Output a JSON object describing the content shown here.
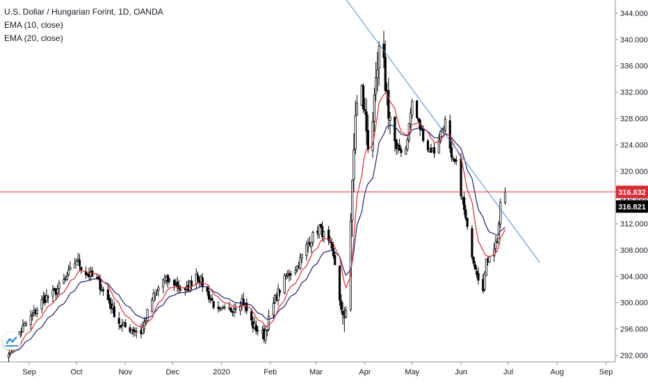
{
  "legend": {
    "title": "U.S. Dollar / Hungarian Forint, 1D, OANDA",
    "ema1": "EMA (10, close)",
    "ema2": "EMA (20, close)"
  },
  "colors": {
    "up": "#ffffff",
    "down": "#000000",
    "wick": "#000000",
    "ema10": "#e0272e",
    "ema20": "#1d1d6e",
    "trendline": "#3a8fe0",
    "hline": "#e0272e",
    "last_price_bg": "#000000"
  },
  "chart_data": {
    "type": "candlestick",
    "y_ticks": [
      "344.000",
      "340.000",
      "336.000",
      "332.000",
      "328.000",
      "324.000",
      "320.000",
      "316.000",
      "312.000",
      "308.000",
      "304.000",
      "300.000",
      "296.000",
      "292.000"
    ],
    "x_ticks": [
      "Sep",
      "Oct",
      "Nov",
      "Dec",
      "2020",
      "Feb",
      "Mar",
      "Apr",
      "May",
      "Jun",
      "Jul",
      "Aug",
      "Sep"
    ],
    "ylim": [
      291,
      346
    ],
    "hline_price": 316.832,
    "hline_label": "316.832",
    "last_price": 316.821,
    "last_price_label": "316.821",
    "trendline": {
      "from": [
        "2020-03-20",
        346.1
      ],
      "to": [
        "2020-07-21",
        306.1
      ]
    },
    "anchors": [
      [
        "2019-08-19",
        292.8
      ],
      [
        "2019-08-26",
        295.5
      ],
      [
        "2019-09-03",
        298.0
      ],
      [
        "2019-09-10",
        300.5
      ],
      [
        "2019-09-17",
        301.5
      ],
      [
        "2019-09-24",
        303.5
      ],
      [
        "2019-10-01",
        306.5
      ],
      [
        "2019-10-07",
        304.5
      ],
      [
        "2019-10-14",
        303.5
      ],
      [
        "2019-10-22",
        300.0
      ],
      [
        "2019-10-29",
        296.5
      ],
      [
        "2019-11-05",
        296.0
      ],
      [
        "2019-11-11",
        295.5
      ],
      [
        "2019-11-18",
        300.5
      ],
      [
        "2019-11-25",
        303.5
      ],
      [
        "2019-12-02",
        303.0
      ],
      [
        "2019-12-09",
        301.5
      ],
      [
        "2019-12-16",
        304.5
      ],
      [
        "2019-12-23",
        301.5
      ],
      [
        "2019-12-30",
        298.5
      ],
      [
        "2020-01-07",
        299.0
      ],
      [
        "2020-01-14",
        300.5
      ],
      [
        "2020-01-21",
        296.5
      ],
      [
        "2020-01-28",
        295.0
      ],
      [
        "2020-02-04",
        300.5
      ],
      [
        "2020-02-11",
        304.0
      ],
      [
        "2020-02-18",
        305.5
      ],
      [
        "2020-02-25",
        309.0
      ],
      [
        "2020-03-03",
        311.5
      ],
      [
        "2020-03-10",
        308.5
      ],
      [
        "2020-03-14",
        305.0
      ],
      [
        "2020-03-18",
        296.5
      ],
      [
        "2020-03-20",
        300.0
      ],
      [
        "2020-03-24",
        317.0
      ],
      [
        "2020-03-26",
        329.0
      ],
      [
        "2020-03-30",
        332.0
      ],
      [
        "2020-04-03",
        324.5
      ],
      [
        "2020-04-07",
        329.5
      ],
      [
        "2020-04-10",
        337.5
      ],
      [
        "2020-04-13",
        335.5
      ],
      [
        "2020-04-16",
        329.5
      ],
      [
        "2020-04-21",
        323.0
      ],
      [
        "2020-04-27",
        323.5
      ],
      [
        "2020-05-01",
        330.5
      ],
      [
        "2020-05-06",
        326.5
      ],
      [
        "2020-05-11",
        323.5
      ],
      [
        "2020-05-15",
        323.0
      ],
      [
        "2020-05-20",
        326.5
      ],
      [
        "2020-05-22",
        327.5
      ],
      [
        "2020-05-26",
        321.5
      ],
      [
        "2020-05-29",
        321.0
      ],
      [
        "2020-06-02",
        315.5
      ],
      [
        "2020-06-05",
        311.0
      ],
      [
        "2020-06-09",
        306.5
      ],
      [
        "2020-06-12",
        304.0
      ],
      [
        "2020-06-15",
        302.5
      ],
      [
        "2020-06-17",
        306.0
      ],
      [
        "2020-06-19",
        307.5
      ],
      [
        "2020-06-22",
        308.5
      ],
      [
        "2020-06-24",
        309.5
      ],
      [
        "2020-06-26",
        314.5
      ],
      [
        "2020-06-29",
        316.8
      ]
    ]
  }
}
